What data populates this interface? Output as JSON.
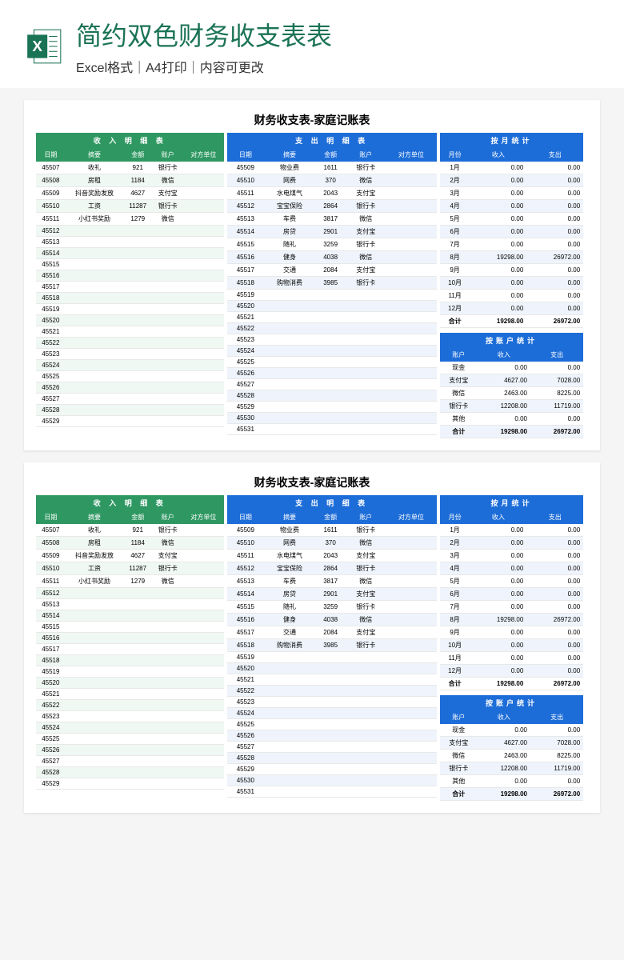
{
  "header": {
    "title": "简约双色财务收支表表",
    "subtitle": "Excel格式｜A4打印｜内容可更改"
  },
  "colors": {
    "green": "#2f9862",
    "blue": "#1d6dd8",
    "title_color": "#1a7354",
    "income_stripe": "#f0f8f3",
    "expense_stripe": "#eff4fc"
  },
  "sheet": {
    "title": "财务收支表-家庭记账表",
    "income": {
      "header": "收 入 明 细 表",
      "columns": [
        "日期",
        "摘要",
        "金额",
        "账户",
        "对方单位"
      ],
      "rows": [
        [
          "45507",
          "收礼",
          "921",
          "银行卡",
          ""
        ],
        [
          "45508",
          "房租",
          "1184",
          "微信",
          ""
        ],
        [
          "45509",
          "抖音奖励发放",
          "4627",
          "支付宝",
          ""
        ],
        [
          "45510",
          "工资",
          "11287",
          "银行卡",
          ""
        ],
        [
          "45511",
          "小红书奖励",
          "1279",
          "微信",
          ""
        ],
        [
          "45512",
          "",
          "",
          "",
          ""
        ],
        [
          "45513",
          "",
          "",
          "",
          ""
        ],
        [
          "45514",
          "",
          "",
          "",
          ""
        ],
        [
          "45515",
          "",
          "",
          "",
          ""
        ],
        [
          "45516",
          "",
          "",
          "",
          ""
        ],
        [
          "45517",
          "",
          "",
          "",
          ""
        ],
        [
          "45518",
          "",
          "",
          "",
          ""
        ],
        [
          "45519",
          "",
          "",
          "",
          ""
        ],
        [
          "45520",
          "",
          "",
          "",
          ""
        ],
        [
          "45521",
          "",
          "",
          "",
          ""
        ],
        [
          "45522",
          "",
          "",
          "",
          ""
        ],
        [
          "45523",
          "",
          "",
          "",
          ""
        ],
        [
          "45524",
          "",
          "",
          "",
          ""
        ],
        [
          "45525",
          "",
          "",
          "",
          ""
        ],
        [
          "45526",
          "",
          "",
          "",
          ""
        ],
        [
          "45527",
          "",
          "",
          "",
          ""
        ],
        [
          "45528",
          "",
          "",
          "",
          ""
        ],
        [
          "45529",
          "",
          "",
          "",
          ""
        ]
      ]
    },
    "expense": {
      "header": "支 出 明 细 表",
      "columns": [
        "日期",
        "摘要",
        "金额",
        "账户",
        "对方单位"
      ],
      "rows": [
        [
          "45509",
          "物业费",
          "1611",
          "银行卡",
          ""
        ],
        [
          "45510",
          "网费",
          "370",
          "微信",
          ""
        ],
        [
          "45511",
          "水电煤气",
          "2043",
          "支付宝",
          ""
        ],
        [
          "45512",
          "宝宝保险",
          "2864",
          "银行卡",
          ""
        ],
        [
          "45513",
          "车费",
          "3817",
          "微信",
          ""
        ],
        [
          "45514",
          "房贷",
          "2901",
          "支付宝",
          ""
        ],
        [
          "45515",
          "随礼",
          "3259",
          "银行卡",
          ""
        ],
        [
          "45516",
          "健身",
          "4038",
          "微信",
          ""
        ],
        [
          "45517",
          "交通",
          "2084",
          "支付宝",
          ""
        ],
        [
          "45518",
          "购物消费",
          "3985",
          "银行卡",
          ""
        ],
        [
          "45519",
          "",
          "",
          "",
          ""
        ],
        [
          "45520",
          "",
          "",
          "",
          ""
        ],
        [
          "45521",
          "",
          "",
          "",
          ""
        ],
        [
          "45522",
          "",
          "",
          "",
          ""
        ],
        [
          "45523",
          "",
          "",
          "",
          ""
        ],
        [
          "45524",
          "",
          "",
          "",
          ""
        ],
        [
          "45525",
          "",
          "",
          "",
          ""
        ],
        [
          "45526",
          "",
          "",
          "",
          ""
        ],
        [
          "45527",
          "",
          "",
          "",
          ""
        ],
        [
          "45528",
          "",
          "",
          "",
          ""
        ],
        [
          "45529",
          "",
          "",
          "",
          ""
        ],
        [
          "45530",
          "",
          "",
          "",
          ""
        ],
        [
          "45531",
          "",
          "",
          "",
          ""
        ]
      ]
    },
    "monthly": {
      "header": "按月统计",
      "columns": [
        "月份",
        "收入",
        "支出"
      ],
      "rows": [
        [
          "1月",
          "0.00",
          "0.00"
        ],
        [
          "2月",
          "0.00",
          "0.00"
        ],
        [
          "3月",
          "0.00",
          "0.00"
        ],
        [
          "4月",
          "0.00",
          "0.00"
        ],
        [
          "5月",
          "0.00",
          "0.00"
        ],
        [
          "6月",
          "0.00",
          "0.00"
        ],
        [
          "7月",
          "0.00",
          "0.00"
        ],
        [
          "8月",
          "19298.00",
          "26972.00"
        ],
        [
          "9月",
          "0.00",
          "0.00"
        ],
        [
          "10月",
          "0.00",
          "0.00"
        ],
        [
          "11月",
          "0.00",
          "0.00"
        ],
        [
          "12月",
          "0.00",
          "0.00"
        ],
        [
          "合计",
          "19298.00",
          "26972.00"
        ]
      ]
    },
    "account": {
      "header": "按账户统计",
      "columns": [
        "账户",
        "收入",
        "支出"
      ],
      "rows": [
        [
          "现金",
          "0.00",
          "0.00"
        ],
        [
          "支付宝",
          "4627.00",
          "7028.00"
        ],
        [
          "微信",
          "2463.00",
          "8225.00"
        ],
        [
          "银行卡",
          "12208.00",
          "11719.00"
        ],
        [
          "其他",
          "0.00",
          "0.00"
        ],
        [
          "合计",
          "19298.00",
          "26972.00"
        ]
      ]
    }
  }
}
